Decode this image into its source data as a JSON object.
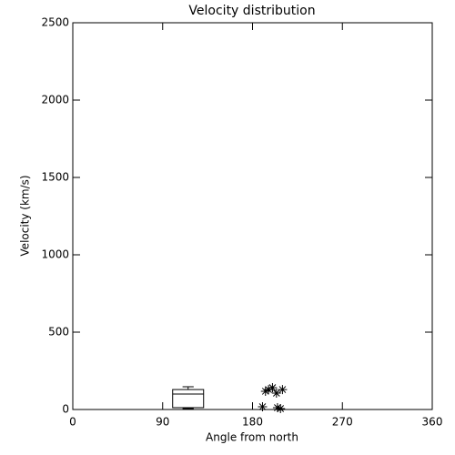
{
  "chart_data": {
    "type": "box",
    "title": "Velocity distribution",
    "xlabel": "Angle from north",
    "ylabel": "Velocity (km/s)",
    "xlim": [
      0,
      360
    ],
    "ylim": [
      0,
      2500
    ],
    "xticks": [
      0,
      90,
      180,
      270,
      360
    ],
    "yticks": [
      0,
      500,
      1000,
      1500,
      2000,
      2500
    ],
    "boxes": [
      {
        "x_low": 100,
        "x_high": 131,
        "min": 6,
        "q1": 12,
        "median": 100,
        "q3": 129,
        "max": 147
      }
    ],
    "points": {
      "x": [
        190,
        193,
        196,
        200,
        204,
        210,
        205,
        208
      ],
      "y": [
        18,
        118,
        129,
        141,
        106,
        129,
        12,
        6
      ]
    }
  }
}
